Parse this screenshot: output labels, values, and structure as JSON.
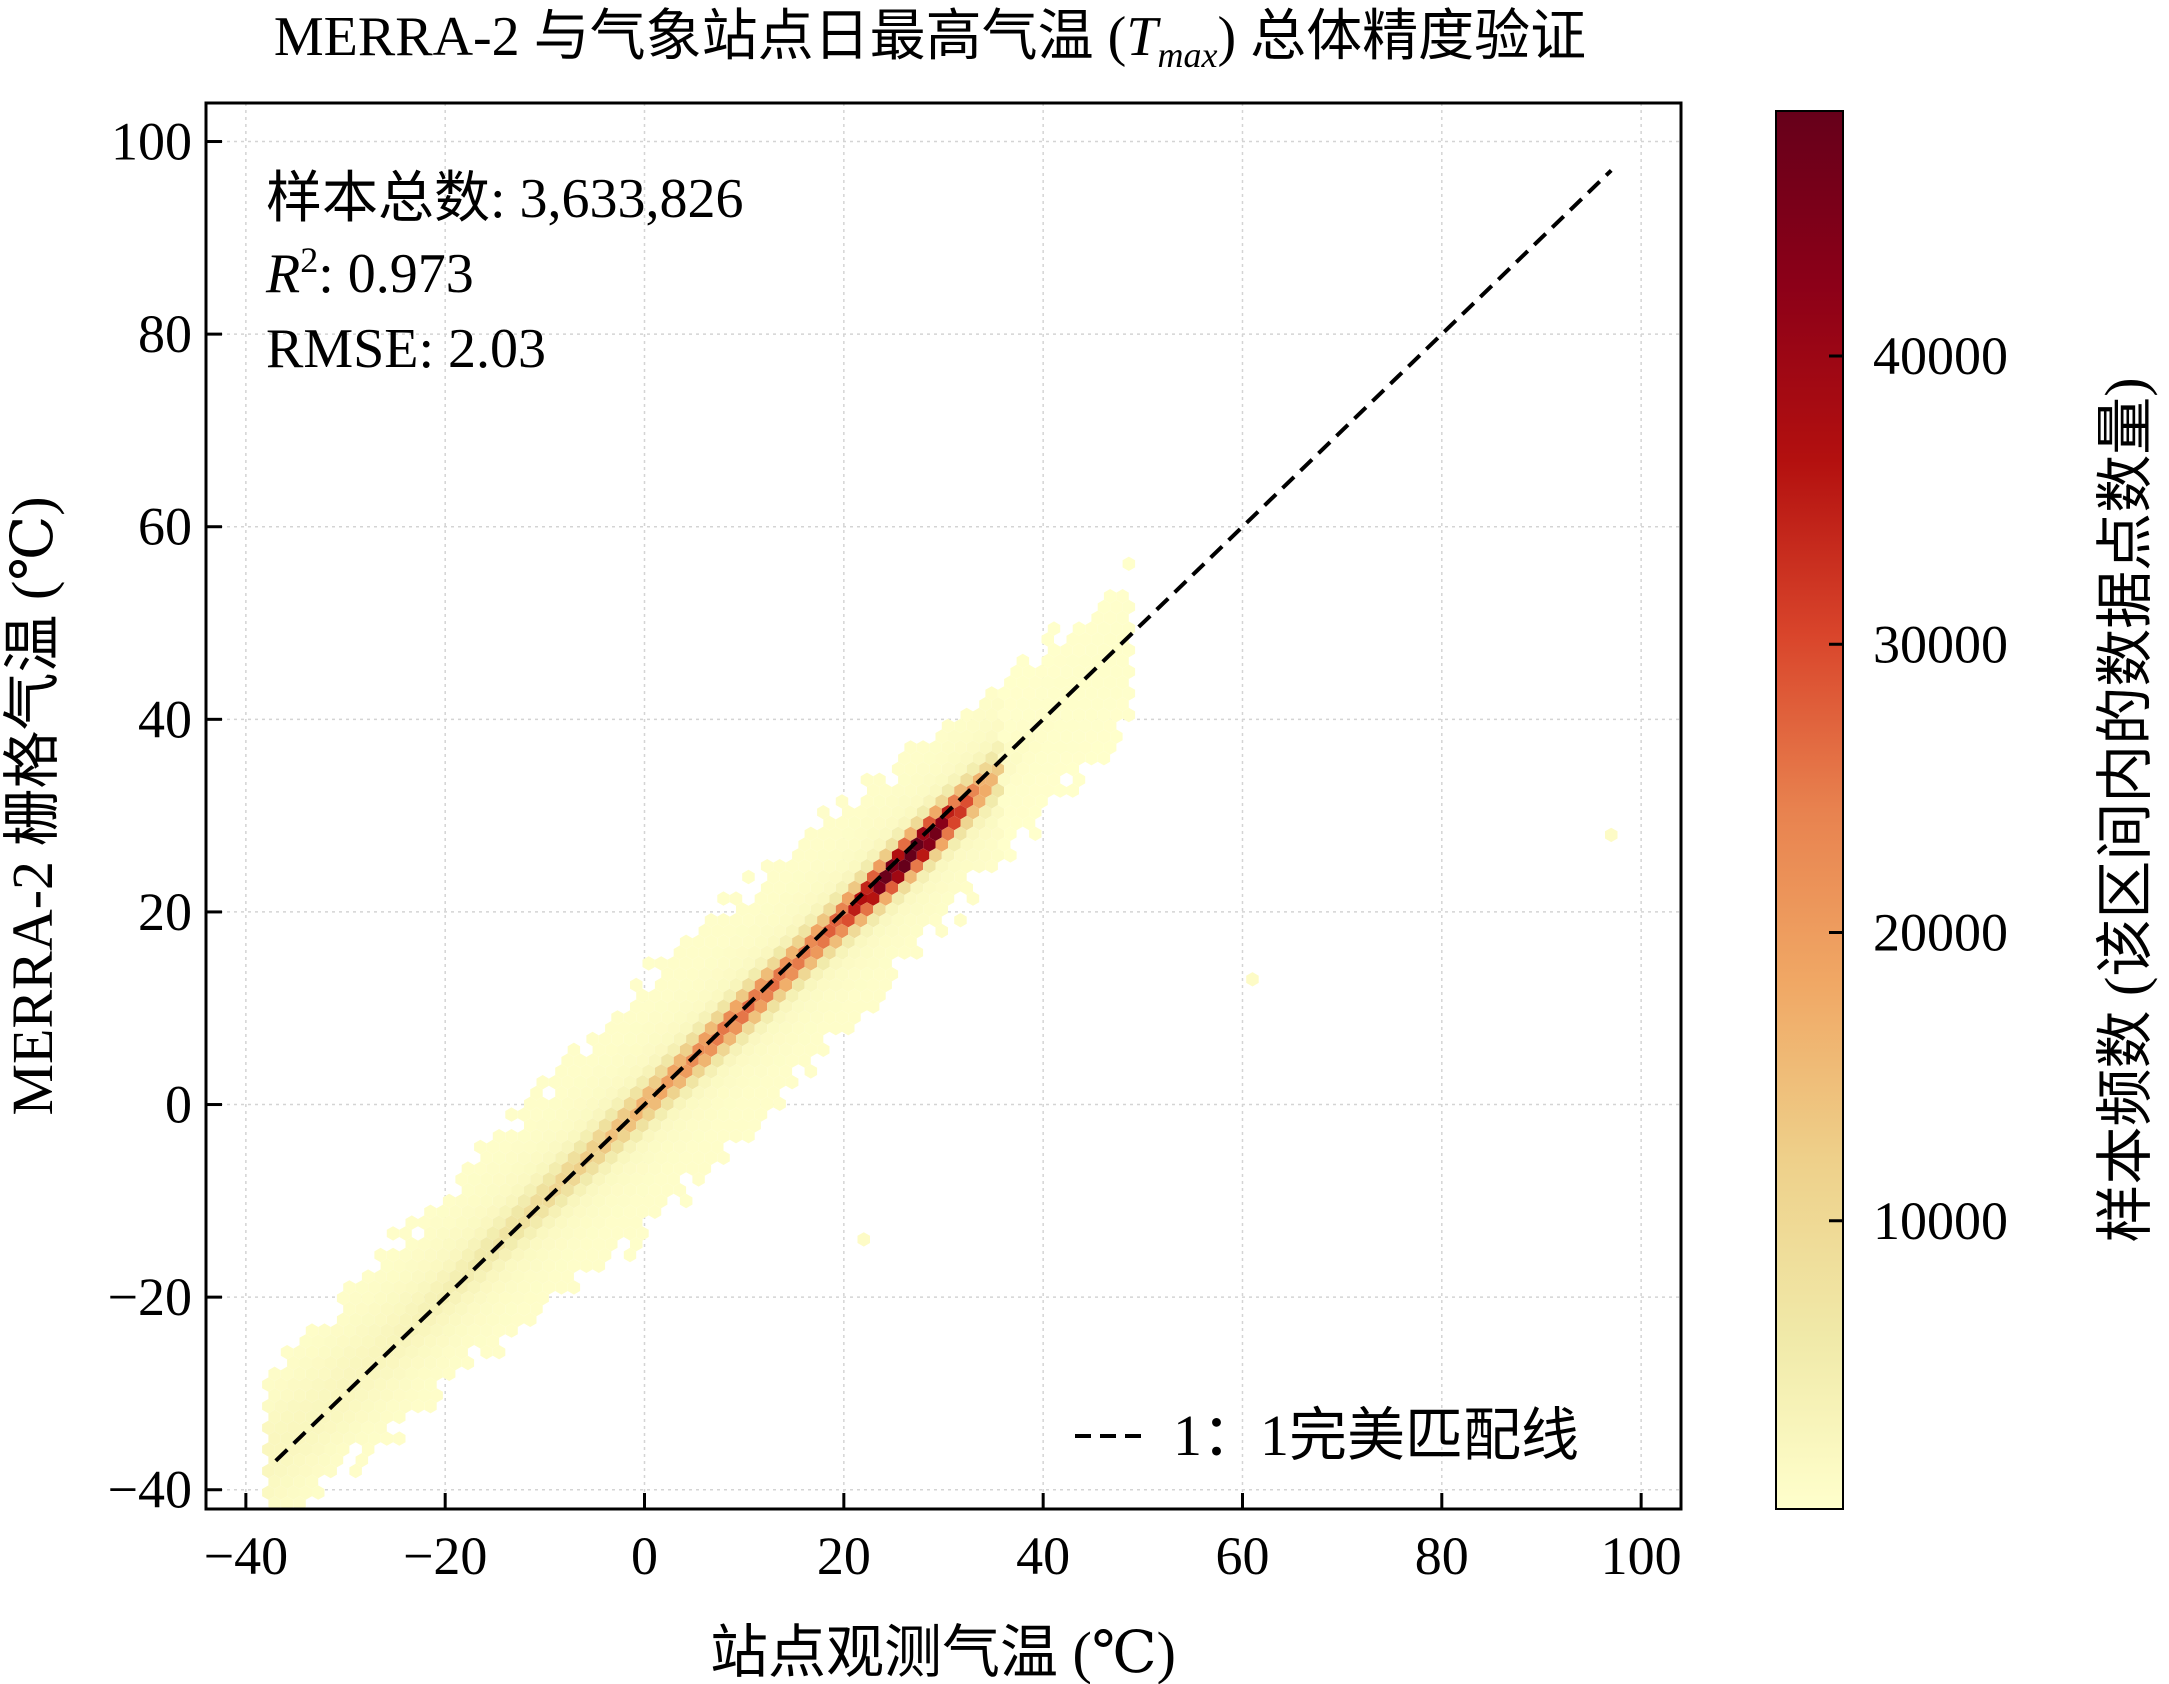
{
  "chart_data": {
    "type": "hexbin",
    "title_prefix": "MERRA-2 与气象站点日最高气温 (",
    "title_var": "T",
    "title_sub": "max",
    "title_suffix": ") 总体精度验证",
    "xlabel": "站点观测气温 (℃)",
    "ylabel": "MERRA-2 栅格气温 (℃)",
    "colorbar_label": "样本频数 (该区间内的数据点数量)",
    "xlim": [
      -44,
      104
    ],
    "ylim": [
      -42,
      104
    ],
    "xticks": [
      -40,
      -20,
      0,
      20,
      40,
      60,
      80,
      100
    ],
    "yticks": [
      -40,
      -20,
      0,
      20,
      40,
      60,
      80,
      100
    ],
    "xtick_labels": [
      "−40",
      "−20",
      "0",
      "20",
      "40",
      "60",
      "80",
      "100"
    ],
    "ytick_labels": [
      "−40",
      "−20",
      "0",
      "20",
      "40",
      "60",
      "80",
      "100"
    ],
    "colorbar_range": [
      0,
      48500
    ],
    "colorbar_ticks": [
      10000,
      20000,
      30000,
      40000
    ],
    "colorbar_tick_labels": [
      "10000",
      "20000",
      "30000",
      "40000"
    ],
    "grid": true,
    "legend_position": "bottom-right",
    "colormap": [
      "#ffffcc",
      "#f0e9a8",
      "#eed08a",
      "#f0a865",
      "#e8824f",
      "#d9452b",
      "#b3100f",
      "#8c0018",
      "#66001a"
    ],
    "stats": {
      "n_label": "样本总数: 3,633,826",
      "r2_var": "R",
      "r2_sup": "2",
      "r2_rest": ": 0.973",
      "rmse_label": "RMSE: 2.03"
    },
    "legend_label": "1：1完美匹配线",
    "reference_line": {
      "x": [
        -37,
        97
      ],
      "y": [
        -37,
        97
      ],
      "style": "dashed",
      "color": "#000000"
    },
    "density_band": {
      "x_range": [
        -38,
        49
      ],
      "center_slope": 0.97,
      "center_intercept": 0.0,
      "peak_x": 27,
      "peak_count": 48000,
      "core_width": 2.0,
      "outer_width": 13
    },
    "outliers": [
      {
        "x": 97,
        "y": 28,
        "count": 1
      },
      {
        "x": 61,
        "y": 13,
        "count": 1
      },
      {
        "x": 22,
        "y": -14,
        "count": 1
      }
    ]
  }
}
